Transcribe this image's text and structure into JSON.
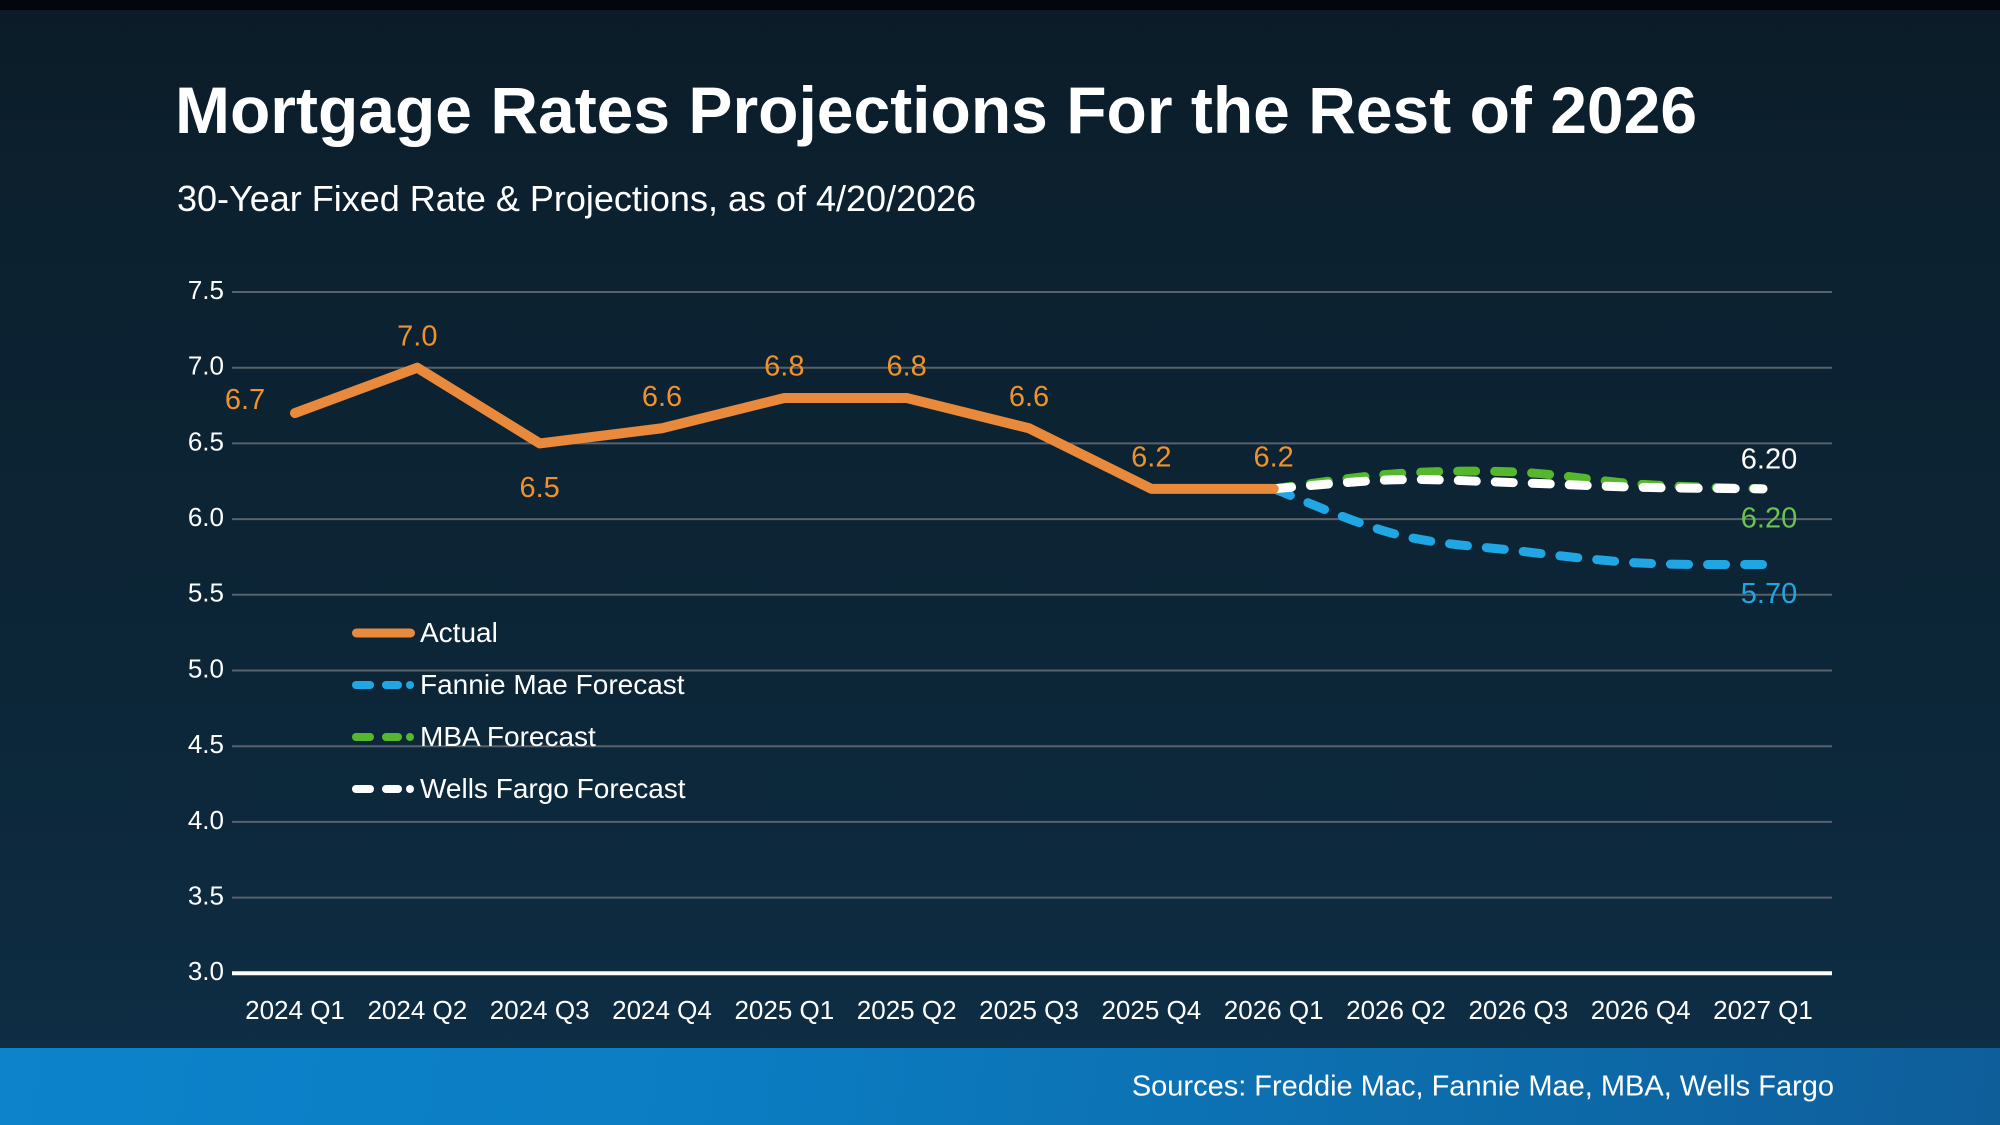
{
  "header": {
    "title": "Mortgage Rates Projections For the Rest of 2026",
    "subtitle": "30-Year Fixed Rate & Projections, as of 4/20/2026"
  },
  "footer": {
    "sources": "Sources: Freddie Mac, Fannie Mae, MBA, Wells Fargo"
  },
  "theme": {
    "background": "#0c2434",
    "top_strip": "#01070d",
    "gridline": "#57626b",
    "axis_line": "#ffffff",
    "text": "#ffffff",
    "footer_bar": "#0b7ec6"
  },
  "chart_data": {
    "type": "line",
    "title": "Mortgage Rates Projections For the Rest of 2026",
    "subtitle": "30-Year Fixed Rate & Projections, as of 4/20/2026",
    "categories": [
      "2024 Q1",
      "2024 Q2",
      "2024 Q3",
      "2024 Q4",
      "2025 Q1",
      "2025 Q2",
      "2025 Q3",
      "2025 Q4",
      "2026 Q1",
      "2026 Q2",
      "2026 Q3",
      "2026 Q4",
      "2027 Q1"
    ],
    "xlabel": "",
    "ylabel": "",
    "ylim": [
      3.0,
      7.5
    ],
    "ytick_step": 0.5,
    "yticks": [
      "7.5",
      "7.0",
      "6.5",
      "6.0",
      "5.5",
      "5.0",
      "4.5",
      "4.0",
      "3.5",
      "3.0"
    ],
    "grid": "horizontal",
    "legend_position": "inside-left",
    "series": [
      {
        "name": "Actual",
        "style": "solid",
        "color": "#E8893B",
        "label_color": "#F0922B",
        "start_index": 0,
        "values": [
          6.7,
          7.0,
          6.5,
          6.6,
          6.8,
          6.8,
          6.6,
          6.2,
          6.2
        ],
        "point_labels": [
          "6.7",
          "7.0",
          "6.5",
          "6.6",
          "6.8",
          "6.8",
          "6.6",
          "6.2",
          "6.2"
        ]
      },
      {
        "name": "Fannie Mae Forecast",
        "style": "dashed",
        "color": "#1FA6E3",
        "label_color": "#1FA6E3",
        "start_index": 8,
        "values": [
          6.2,
          5.9,
          5.79,
          5.71,
          5.7
        ],
        "end_label": "5.70"
      },
      {
        "name": "MBA Forecast",
        "style": "dashed",
        "color": "#55B82C",
        "label_color": "#6CC24F",
        "start_index": 8,
        "values": [
          6.2,
          6.3,
          6.31,
          6.23,
          6.2
        ],
        "end_label": "6.20"
      },
      {
        "name": "Wells Fargo Forecast",
        "style": "dashed",
        "color": "#FFFFFF",
        "label_color": "#FFFFFF",
        "start_index": 8,
        "values": [
          6.2,
          6.26,
          6.24,
          6.21,
          6.2
        ],
        "end_label": "6.20"
      }
    ]
  }
}
